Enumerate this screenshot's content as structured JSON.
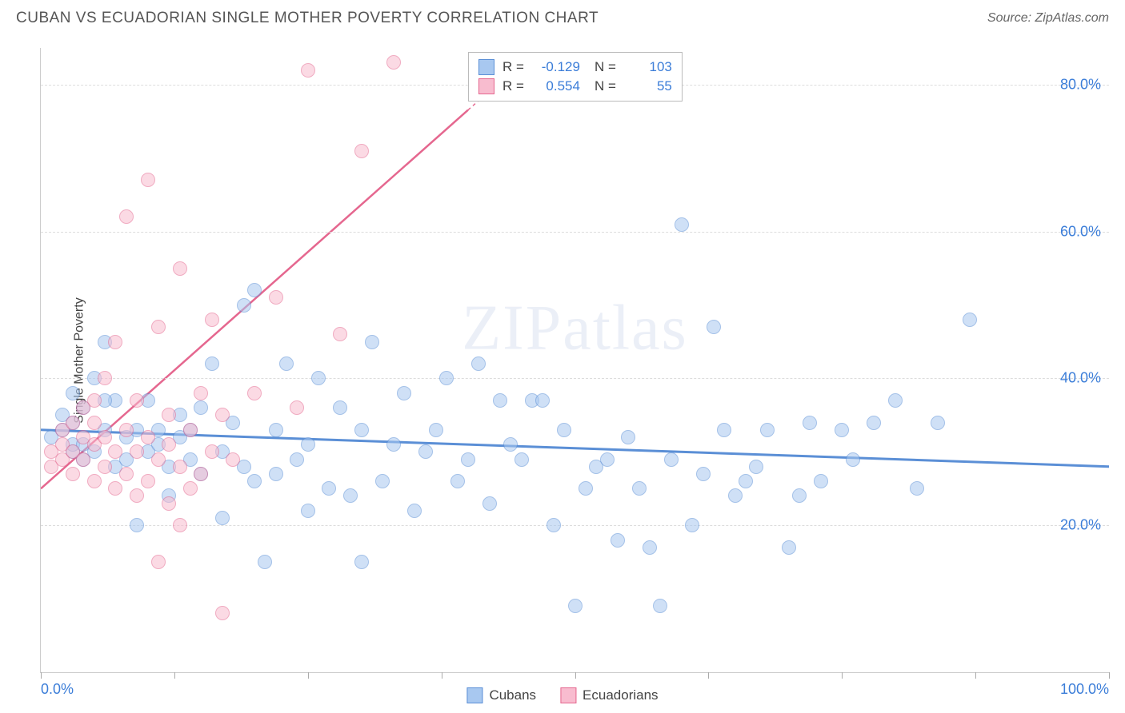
{
  "header": {
    "title": "CUBAN VS ECUADORIAN SINGLE MOTHER POVERTY CORRELATION CHART",
    "source": "Source: ZipAtlas.com"
  },
  "chart": {
    "type": "scatter",
    "watermark": "ZIPatlas",
    "y_axis_label": "Single Mother Poverty",
    "xlim": [
      0,
      100
    ],
    "ylim": [
      0,
      85
    ],
    "x_ticks": [
      0,
      12.5,
      25,
      37.5,
      50,
      62.5,
      75,
      87.5,
      100
    ],
    "x_tick_labels": {
      "0": "0.0%",
      "100": "100.0%"
    },
    "y_gridlines": [
      20,
      40,
      60,
      80
    ],
    "y_tick_labels": {
      "20": "20.0%",
      "40": "40.0%",
      "60": "60.0%",
      "80": "80.0%"
    },
    "background_color": "#ffffff",
    "grid_color": "#dddddd",
    "axis_color": "#cccccc",
    "tick_label_color": "#3b7dd8",
    "marker_radius": 9,
    "series": [
      {
        "name": "Cubans",
        "color_fill": "#a8c8f0",
        "color_stroke": "#5b8fd6",
        "r": -0.129,
        "n": 103,
        "trend": {
          "x1": 0,
          "y1": 33,
          "x2": 100,
          "y2": 28,
          "solid_until": 100,
          "width": 3
        },
        "points": [
          [
            1,
            32
          ],
          [
            2,
            33
          ],
          [
            2,
            35
          ],
          [
            3,
            30
          ],
          [
            3,
            31
          ],
          [
            3,
            34
          ],
          [
            4,
            29
          ],
          [
            4,
            36
          ],
          [
            5,
            30
          ],
          [
            5,
            40
          ],
          [
            6,
            33
          ],
          [
            6,
            45
          ],
          [
            7,
            28
          ],
          [
            7,
            37
          ],
          [
            8,
            32
          ],
          [
            9,
            33
          ],
          [
            9,
            20
          ],
          [
            10,
            37
          ],
          [
            10,
            30
          ],
          [
            11,
            31
          ],
          [
            11,
            33
          ],
          [
            12,
            28
          ],
          [
            12,
            24
          ],
          [
            13,
            35
          ],
          [
            13,
            32
          ],
          [
            14,
            29
          ],
          [
            14,
            33
          ],
          [
            15,
            27
          ],
          [
            15,
            36
          ],
          [
            16,
            42
          ],
          [
            17,
            21
          ],
          [
            17,
            30
          ],
          [
            18,
            34
          ],
          [
            19,
            28
          ],
          [
            19,
            50
          ],
          [
            20,
            26
          ],
          [
            20,
            52
          ],
          [
            21,
            15
          ],
          [
            22,
            27
          ],
          [
            22,
            33
          ],
          [
            23,
            42
          ],
          [
            24,
            29
          ],
          [
            25,
            31
          ],
          [
            25,
            22
          ],
          [
            26,
            40
          ],
          [
            27,
            25
          ],
          [
            28,
            36
          ],
          [
            29,
            24
          ],
          [
            30,
            15
          ],
          [
            30,
            33
          ],
          [
            31,
            45
          ],
          [
            32,
            26
          ],
          [
            33,
            31
          ],
          [
            34,
            38
          ],
          [
            35,
            22
          ],
          [
            36,
            30
          ],
          [
            37,
            33
          ],
          [
            38,
            40
          ],
          [
            39,
            26
          ],
          [
            40,
            29
          ],
          [
            41,
            42
          ],
          [
            42,
            23
          ],
          [
            43,
            37
          ],
          [
            44,
            31
          ],
          [
            45,
            29
          ],
          [
            46,
            37
          ],
          [
            47,
            37
          ],
          [
            48,
            20
          ],
          [
            49,
            33
          ],
          [
            50,
            9
          ],
          [
            51,
            25
          ],
          [
            52,
            28
          ],
          [
            53,
            29
          ],
          [
            54,
            18
          ],
          [
            55,
            32
          ],
          [
            56,
            25
          ],
          [
            57,
            17
          ],
          [
            58,
            9
          ],
          [
            59,
            29
          ],
          [
            60,
            61
          ],
          [
            61,
            20
          ],
          [
            62,
            27
          ],
          [
            63,
            47
          ],
          [
            64,
            33
          ],
          [
            65,
            24
          ],
          [
            66,
            26
          ],
          [
            67,
            28
          ],
          [
            68,
            33
          ],
          [
            70,
            17
          ],
          [
            71,
            24
          ],
          [
            72,
            34
          ],
          [
            73,
            26
          ],
          [
            75,
            33
          ],
          [
            76,
            29
          ],
          [
            78,
            34
          ],
          [
            80,
            37
          ],
          [
            82,
            25
          ],
          [
            84,
            34
          ],
          [
            87,
            48
          ],
          [
            3,
            38
          ],
          [
            4,
            31
          ],
          [
            6,
            37
          ],
          [
            8,
            29
          ]
        ]
      },
      {
        "name": "Ecuadorians",
        "color_fill": "#f8bccf",
        "color_stroke": "#e5678f",
        "r": 0.554,
        "n": 55,
        "trend": {
          "x1": 0,
          "y1": 25,
          "x2": 45,
          "y2": 83,
          "solid_until": 40,
          "width": 2.5
        },
        "points": [
          [
            1,
            28
          ],
          [
            1,
            30
          ],
          [
            2,
            29
          ],
          [
            2,
            31
          ],
          [
            2,
            33
          ],
          [
            3,
            27
          ],
          [
            3,
            30
          ],
          [
            3,
            34
          ],
          [
            4,
            29
          ],
          [
            4,
            32
          ],
          [
            4,
            36
          ],
          [
            5,
            26
          ],
          [
            5,
            31
          ],
          [
            5,
            34
          ],
          [
            5,
            37
          ],
          [
            6,
            28
          ],
          [
            6,
            32
          ],
          [
            6,
            40
          ],
          [
            7,
            25
          ],
          [
            7,
            30
          ],
          [
            7,
            45
          ],
          [
            8,
            27
          ],
          [
            8,
            33
          ],
          [
            8,
            62
          ],
          [
            9,
            24
          ],
          [
            9,
            30
          ],
          [
            9,
            37
          ],
          [
            10,
            26
          ],
          [
            10,
            32
          ],
          [
            10,
            67
          ],
          [
            11,
            15
          ],
          [
            11,
            29
          ],
          [
            11,
            47
          ],
          [
            12,
            23
          ],
          [
            12,
            31
          ],
          [
            12,
            35
          ],
          [
            13,
            20
          ],
          [
            13,
            28
          ],
          [
            13,
            55
          ],
          [
            14,
            25
          ],
          [
            14,
            33
          ],
          [
            15,
            27
          ],
          [
            15,
            38
          ],
          [
            16,
            30
          ],
          [
            16,
            48
          ],
          [
            17,
            8
          ],
          [
            17,
            35
          ],
          [
            18,
            29
          ],
          [
            20,
            38
          ],
          [
            22,
            51
          ],
          [
            24,
            36
          ],
          [
            25,
            82
          ],
          [
            28,
            46
          ],
          [
            30,
            71
          ],
          [
            33,
            83
          ]
        ]
      }
    ],
    "stats_box": {
      "rows": [
        {
          "swatch_fill": "#a8c8f0",
          "swatch_stroke": "#5b8fd6",
          "r_label": "R =",
          "r_val": "-0.129",
          "n_label": "N =",
          "n_val": "103"
        },
        {
          "swatch_fill": "#f8bccf",
          "swatch_stroke": "#e5678f",
          "r_label": "R =",
          "r_val": "0.554",
          "n_label": "N =",
          "n_val": "55"
        }
      ]
    },
    "legend": {
      "items": [
        {
          "label": "Cubans",
          "fill": "#a8c8f0",
          "stroke": "#5b8fd6"
        },
        {
          "label": "Ecuadorians",
          "fill": "#f8bccf",
          "stroke": "#e5678f"
        }
      ]
    }
  }
}
